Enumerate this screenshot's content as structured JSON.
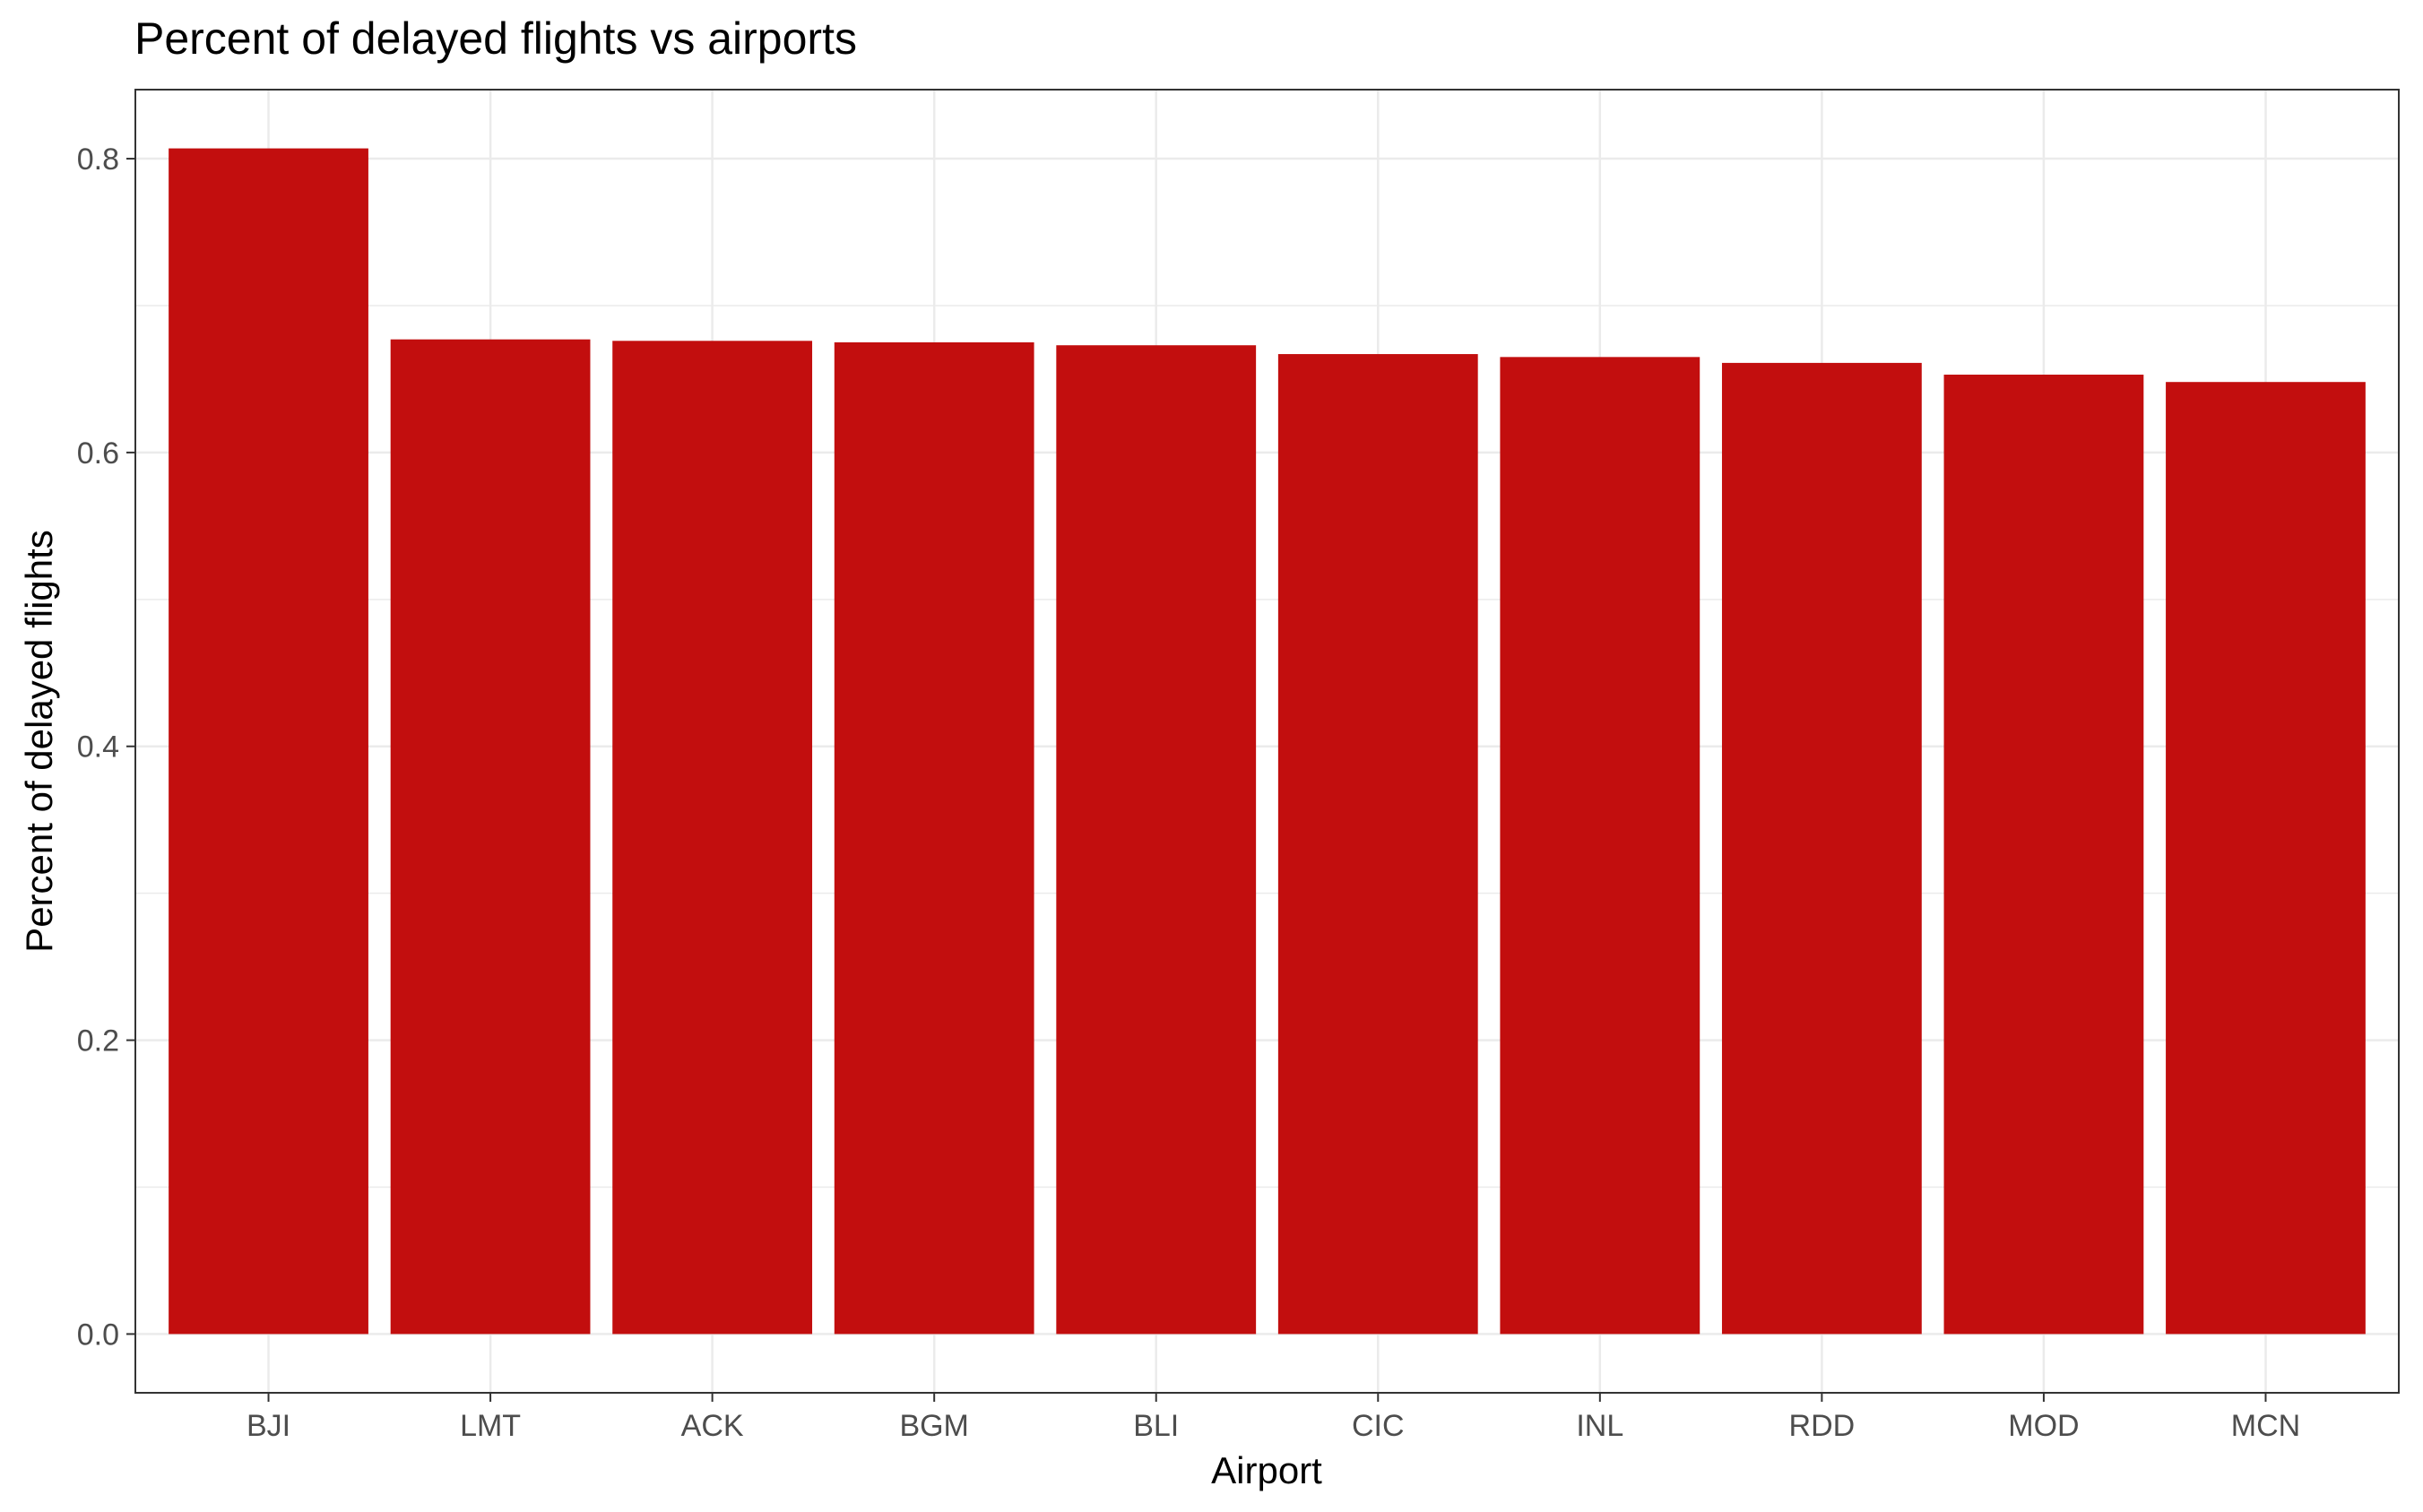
{
  "chart_data": {
    "type": "bar",
    "title": "Percent of delayed flights vs airports",
    "xlabel": "Airport",
    "ylabel": "Percent of delayed flights",
    "categories": [
      "BJI",
      "LMT",
      "ACK",
      "BGM",
      "BLI",
      "CIC",
      "INL",
      "RDD",
      "MOD",
      "MCN"
    ],
    "values": [
      0.807,
      0.677,
      0.676,
      0.675,
      0.673,
      0.667,
      0.665,
      0.661,
      0.653,
      0.648
    ],
    "ylim": [
      -0.04,
      0.847
    ],
    "yticks": [
      0.0,
      0.2,
      0.4,
      0.6,
      0.8
    ],
    "ytick_labels": [
      "0.0",
      "0.2",
      "0.4",
      "0.6",
      "0.8"
    ],
    "grid": true,
    "bar_color": "#c20e0e",
    "grid_color": "#ebebeb",
    "panel_border_color": "#333333"
  }
}
